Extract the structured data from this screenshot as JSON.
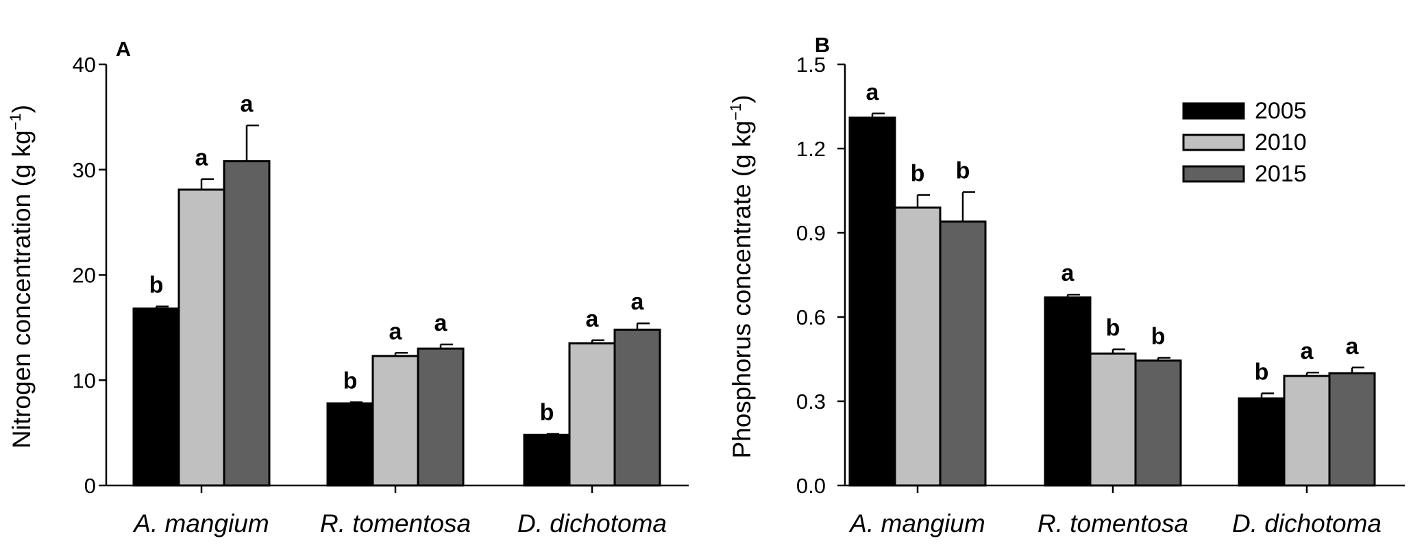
{
  "chart_data": [
    {
      "type": "bar",
      "panel": "A",
      "title": "",
      "ylabel": "Nitrogen concentration (g kg",
      "ylabel_sup": "−1",
      "ylabel_close": ")",
      "ylim": [
        0,
        40
      ],
      "yticks": [
        0,
        10,
        20,
        30,
        40
      ],
      "ytick_labels": [
        "0",
        "10",
        "20",
        "30",
        "40"
      ],
      "categories": [
        "A. mangium",
        "R. tomentosa",
        "D. dichotoma"
      ],
      "series": [
        {
          "name": "2005",
          "color": "#000000",
          "values": [
            16.8,
            7.8,
            4.8
          ],
          "errors": [
            0.2,
            0.1,
            0.1
          ],
          "letters": [
            "b",
            "b",
            "b"
          ]
        },
        {
          "name": "2010",
          "color": "#c0c0c0",
          "values": [
            28.1,
            12.3,
            13.5
          ],
          "errors": [
            1.0,
            0.3,
            0.3
          ],
          "letters": [
            "a",
            "a",
            "a"
          ]
        },
        {
          "name": "2015",
          "color": "#606060",
          "values": [
            30.8,
            13.0,
            14.8
          ],
          "errors": [
            3.4,
            0.4,
            0.6
          ],
          "letters": [
            "a",
            "a",
            "a"
          ]
        }
      ]
    },
    {
      "type": "bar",
      "panel": "B",
      "title": "",
      "ylabel": "Phosphorus concentrate (g kg",
      "ylabel_sup": "−1",
      "ylabel_close": ")",
      "ylim": [
        0,
        1.5
      ],
      "yticks": [
        0,
        0.3,
        0.6,
        0.9,
        1.2,
        1.5
      ],
      "ytick_labels": [
        "0.0",
        "0.3",
        "0.6",
        "0.9",
        "1.2",
        "1.5"
      ],
      "categories": [
        "A. mangium",
        "R. tomentosa",
        "D. dichotoma"
      ],
      "legend": {
        "placement": "top-right",
        "entries": [
          "2005",
          "2010",
          "2015"
        ]
      },
      "series": [
        {
          "name": "2005",
          "color": "#000000",
          "values": [
            1.31,
            0.67,
            0.31
          ],
          "errors": [
            0.015,
            0.01,
            0.018
          ],
          "letters": [
            "a",
            "a",
            "b"
          ]
        },
        {
          "name": "2010",
          "color": "#c0c0c0",
          "values": [
            0.99,
            0.47,
            0.39
          ],
          "errors": [
            0.045,
            0.015,
            0.012
          ],
          "letters": [
            "b",
            "b",
            "a"
          ]
        },
        {
          "name": "2015",
          "color": "#606060",
          "values": [
            0.94,
            0.445,
            0.4
          ],
          "errors": [
            0.105,
            0.01,
            0.02
          ],
          "letters": [
            "b",
            "b",
            "a"
          ]
        }
      ]
    }
  ]
}
